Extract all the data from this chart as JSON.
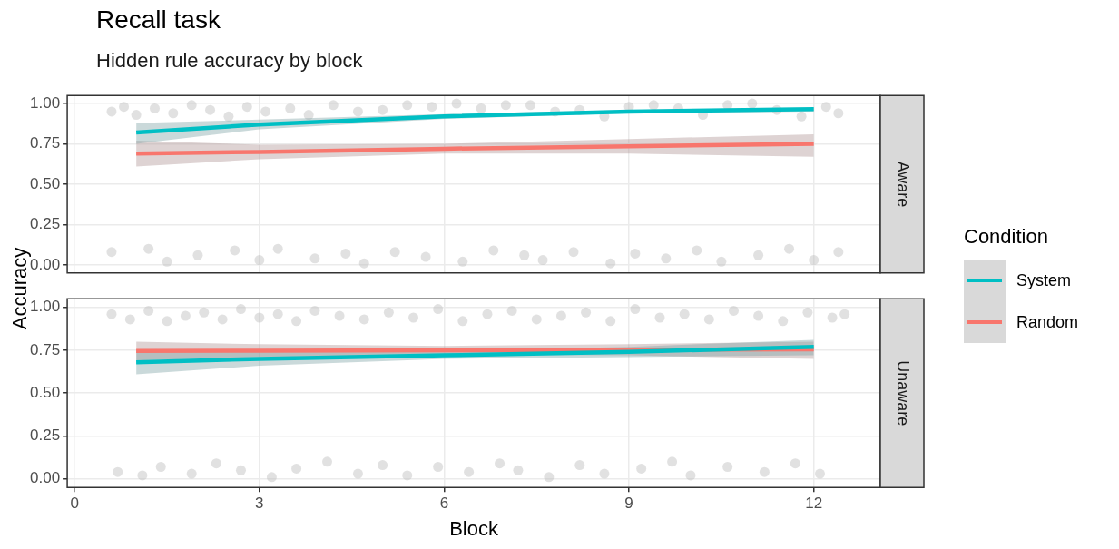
{
  "chart_data": [
    {
      "type": "line",
      "title": "Recall task",
      "subtitle": "Hidden rule accuracy by block",
      "ylabel": "Accuracy",
      "legend_title": "Condition",
      "legend": "right",
      "annotations": [
        "Aware"
      ],
      "xlim": [
        -0.12,
        13.08
      ],
      "xticks": [
        0,
        3,
        6,
        9,
        12
      ],
      "ylim": [
        -0.05,
        1.05
      ],
      "yticks": [
        {
          "value": 0,
          "label": "0.00"
        },
        {
          "value": 0.25,
          "label": "0.25"
        },
        {
          "value": 0.5,
          "label": "0.50"
        },
        {
          "value": 0.75,
          "label": "0.75"
        },
        {
          "value": 1,
          "label": "1.00"
        }
      ],
      "grid": true,
      "tick_labels": "y",
      "series": [
        {
          "type": "scatter",
          "color": "#bdbdbd",
          "x": [
            0.6,
            0.8,
            1.0,
            1.3,
            1.6,
            1.9,
            2.2,
            2.5,
            2.8,
            3.1,
            3.5,
            3.8,
            4.2,
            4.6,
            5.0,
            5.4,
            5.8,
            6.2,
            6.6,
            7.0,
            7.4,
            7.8,
            8.2,
            8.6,
            9.0,
            9.4,
            9.8,
            10.2,
            10.6,
            11.0,
            11.4,
            11.8,
            12.2,
            12.4,
            0.6,
            1.2,
            1.5,
            2.0,
            2.6,
            3.0,
            3.3,
            3.9,
            4.4,
            4.7,
            5.2,
            5.7,
            6.3,
            6.8,
            7.3,
            7.6,
            8.1,
            8.7,
            9.1,
            9.6,
            10.1,
            10.5,
            11.1,
            11.6,
            12.0,
            12.4
          ],
          "values": [
            0.95,
            0.98,
            0.93,
            0.97,
            0.94,
            0.99,
            0.96,
            0.92,
            0.98,
            0.95,
            0.97,
            0.93,
            0.99,
            0.95,
            0.96,
            0.99,
            0.98,
            1.0,
            0.97,
            0.99,
            0.99,
            0.95,
            0.96,
            0.92,
            0.98,
            0.99,
            0.97,
            0.93,
            0.99,
            1.0,
            0.96,
            0.92,
            0.98,
            0.94,
            0.08,
            0.1,
            0.02,
            0.06,
            0.09,
            0.03,
            0.1,
            0.04,
            0.07,
            0.01,
            0.08,
            0.05,
            0.02,
            0.09,
            0.06,
            0.03,
            0.08,
            0.01,
            0.07,
            0.04,
            0.09,
            0.02,
            0.06,
            0.1,
            0.03,
            0.08
          ]
        },
        {
          "name": "System",
          "color": "#00bfc4",
          "x": [
            1,
            3,
            6,
            9,
            12
          ],
          "values": [
            0.82,
            0.87,
            0.92,
            0.95,
            0.965
          ],
          "lower": [
            0.75,
            0.84,
            0.905,
            0.94,
            0.95
          ],
          "upper": [
            0.88,
            0.9,
            0.935,
            0.96,
            0.975
          ]
        },
        {
          "name": "Random",
          "color": "#f8766d",
          "x": [
            1,
            3,
            6,
            9,
            12
          ],
          "values": [
            0.69,
            0.7,
            0.72,
            0.735,
            0.75
          ],
          "lower": [
            0.61,
            0.655,
            0.69,
            0.69,
            0.67
          ],
          "upper": [
            0.77,
            0.745,
            0.75,
            0.78,
            0.81
          ]
        }
      ]
    },
    {
      "type": "line",
      "xlabel": "Block",
      "annotations": [
        "Unaware"
      ],
      "xlim": [
        -0.12,
        13.08
      ],
      "xticks": [
        0,
        3,
        6,
        9,
        12
      ],
      "ylim": [
        -0.05,
        1.05
      ],
      "yticks": [
        {
          "value": 0,
          "label": "0.00"
        },
        {
          "value": 0.25,
          "label": "0.25"
        },
        {
          "value": 0.5,
          "label": "0.50"
        },
        {
          "value": 0.75,
          "label": "0.75"
        },
        {
          "value": 1,
          "label": "1.00"
        }
      ],
      "grid": true,
      "series": [
        {
          "type": "scatter",
          "color": "#bdbdbd",
          "x": [
            0.6,
            0.9,
            1.2,
            1.5,
            1.8,
            2.1,
            2.4,
            2.7,
            3.0,
            3.3,
            3.6,
            3.9,
            4.3,
            4.7,
            5.1,
            5.5,
            5.9,
            6.3,
            6.7,
            7.1,
            7.5,
            7.9,
            8.3,
            8.7,
            9.1,
            9.5,
            9.9,
            10.3,
            10.7,
            11.1,
            11.5,
            11.9,
            12.3,
            12.5,
            0.7,
            1.1,
            1.4,
            1.9,
            2.3,
            2.7,
            3.2,
            3.6,
            4.1,
            4.6,
            5.0,
            5.4,
            5.9,
            6.4,
            6.9,
            7.2,
            7.7,
            8.2,
            8.6,
            9.2,
            9.7,
            10.0,
            10.6,
            11.2,
            11.7,
            12.1
          ],
          "values": [
            0.96,
            0.93,
            0.98,
            0.92,
            0.95,
            0.97,
            0.93,
            0.99,
            0.94,
            0.96,
            0.92,
            0.98,
            0.95,
            0.93,
            0.97,
            0.94,
            0.99,
            0.92,
            0.96,
            0.98,
            0.93,
            0.95,
            0.97,
            0.92,
            0.99,
            0.94,
            0.96,
            0.93,
            0.98,
            0.95,
            0.92,
            0.97,
            0.94,
            0.96,
            0.04,
            0.02,
            0.07,
            0.03,
            0.09,
            0.05,
            0.01,
            0.06,
            0.1,
            0.03,
            0.08,
            0.02,
            0.07,
            0.04,
            0.09,
            0.05,
            0.01,
            0.08,
            0.03,
            0.06,
            0.1,
            0.02,
            0.07,
            0.04,
            0.09,
            0.03
          ]
        },
        {
          "name": "System",
          "color": "#00bfc4",
          "x": [
            1,
            3,
            6,
            9,
            12
          ],
          "values": [
            0.68,
            0.7,
            0.72,
            0.74,
            0.77
          ],
          "lower": [
            0.61,
            0.66,
            0.7,
            0.71,
            0.72
          ],
          "upper": [
            0.75,
            0.74,
            0.745,
            0.77,
            0.81
          ]
        },
        {
          "name": "Random",
          "color": "#f8766d",
          "x": [
            1,
            3,
            6,
            9,
            12
          ],
          "values": [
            0.745,
            0.747,
            0.75,
            0.752,
            0.755
          ],
          "lower": [
            0.69,
            0.71,
            0.725,
            0.72,
            0.7
          ],
          "upper": [
            0.8,
            0.785,
            0.775,
            0.785,
            0.8
          ]
        }
      ]
    }
  ]
}
